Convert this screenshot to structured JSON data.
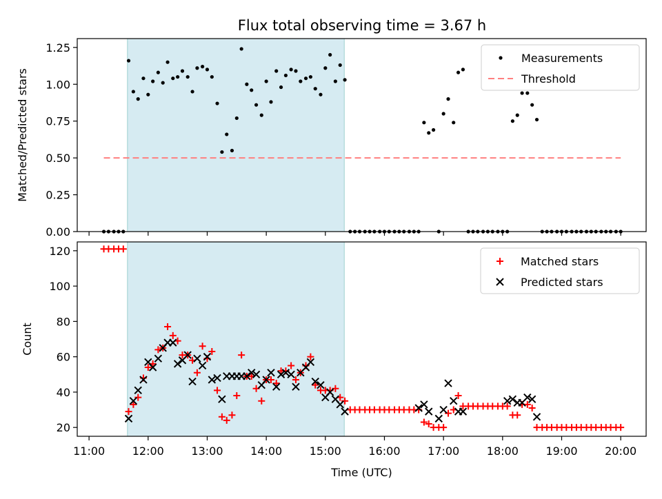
{
  "chart_data": [
    {
      "type": "scatter",
      "title": "Flux total observing time = 3.67 h",
      "ylabel": "Matched/Predicted stars",
      "xlabel": "",
      "xlim": [
        10.8,
        20.43
      ],
      "ylim": [
        0,
        1.31
      ],
      "xticks": [
        11,
        12,
        13,
        14,
        15,
        16,
        17,
        18,
        19,
        20
      ],
      "yticks": [
        0,
        0.25,
        0.5,
        0.75,
        1.0,
        1.25
      ],
      "ytick_labels": [
        "0.00",
        "0.25",
        "0.50",
        "0.75",
        "1.00",
        "1.25"
      ],
      "shaded_interval": [
        11.65,
        15.32
      ],
      "legend_position": "upper-right",
      "series": [
        {
          "name": "Measurements",
          "marker": "dot",
          "color": "#000000",
          "x": [
            11.25,
            11.33,
            11.42,
            11.5,
            11.58,
            11.67,
            11.75,
            11.83,
            11.92,
            12.0,
            12.08,
            12.17,
            12.25,
            12.33,
            12.42,
            12.5,
            12.58,
            12.67,
            12.75,
            12.83,
            12.92,
            13.0,
            13.08,
            13.17,
            13.25,
            13.33,
            13.42,
            13.5,
            13.58,
            13.67,
            13.75,
            13.83,
            13.92,
            14.0,
            14.08,
            14.17,
            14.25,
            14.33,
            14.42,
            14.5,
            14.58,
            14.67,
            14.75,
            14.83,
            14.92,
            15.0,
            15.08,
            15.17,
            15.25,
            15.33,
            15.42,
            15.5,
            15.58,
            15.67,
            15.75,
            15.83,
            15.92,
            16.0,
            16.08,
            16.17,
            16.25,
            16.33,
            16.42,
            16.5,
            16.58,
            16.67,
            16.75,
            16.83,
            16.92,
            17.0,
            17.08,
            17.17,
            17.25,
            17.33,
            17.42,
            17.5,
            17.58,
            17.67,
            17.75,
            17.83,
            17.92,
            18.0,
            18.08,
            18.17,
            18.25,
            18.33,
            18.42,
            18.5,
            18.58,
            18.67,
            18.75,
            18.83,
            18.92,
            19.0,
            19.08,
            19.17,
            19.25,
            19.33,
            19.42,
            19.5,
            19.58,
            19.67,
            19.75,
            19.83,
            19.92,
            20.0
          ],
          "y": [
            0,
            0,
            0,
            0,
            0,
            1.16,
            0.95,
            0.9,
            1.04,
            0.93,
            1.02,
            1.08,
            1.01,
            1.15,
            1.04,
            1.05,
            1.09,
            1.05,
            0.95,
            1.11,
            1.12,
            1.1,
            1.05,
            0.87,
            0.54,
            0.66,
            0.55,
            0.77,
            1.24,
            1.0,
            0.96,
            0.86,
            0.79,
            1.02,
            0.88,
            1.09,
            0.98,
            1.06,
            1.1,
            1.09,
            1.02,
            1.04,
            1.05,
            0.97,
            0.93,
            1.11,
            1.2,
            1.02,
            1.13,
            1.03,
            0,
            0,
            0,
            0,
            0,
            0,
            0,
            0,
            0,
            0,
            0,
            0,
            0,
            0,
            0,
            0.74,
            0.67,
            0.69,
            0,
            0.8,
            0.9,
            0.74,
            1.08,
            1.1,
            0,
            0,
            0,
            0,
            0,
            0,
            0,
            0,
            0,
            0.75,
            0.79,
            0.94,
            0.94,
            0.86,
            0.76,
            0,
            0,
            0,
            0,
            0,
            0,
            0,
            0,
            0,
            0,
            0,
            0,
            0,
            0,
            0,
            0,
            0
          ]
        },
        {
          "name": "Threshold",
          "style": "dashed",
          "color": "#ff7f7f",
          "x": [
            11.25,
            20.0
          ],
          "y": [
            0.5,
            0.5
          ]
        }
      ]
    },
    {
      "type": "scatter",
      "title": "",
      "ylabel": "Count",
      "xlabel": "Time (UTC)",
      "xlim": [
        10.8,
        20.43
      ],
      "ylim": [
        15,
        125
      ],
      "xticks": [
        11,
        12,
        13,
        14,
        15,
        16,
        17,
        18,
        19,
        20
      ],
      "xtick_labels": [
        "11:00",
        "12:00",
        "13:00",
        "14:00",
        "15:00",
        "16:00",
        "17:00",
        "18:00",
        "19:00",
        "20:00"
      ],
      "yticks": [
        20,
        40,
        60,
        80,
        100,
        120
      ],
      "ytick_labels": [
        "20",
        "40",
        "60",
        "80",
        "100",
        "120"
      ],
      "shaded_interval": [
        11.65,
        15.32
      ],
      "legend_position": "upper-right",
      "series": [
        {
          "name": "Matched stars",
          "marker": "plus",
          "color": "#ff0000",
          "x": [
            11.25,
            11.33,
            11.42,
            11.5,
            11.58,
            11.67,
            11.75,
            11.83,
            11.92,
            12.0,
            12.08,
            12.17,
            12.25,
            12.33,
            12.42,
            12.5,
            12.58,
            12.67,
            12.75,
            12.83,
            12.92,
            13.0,
            13.08,
            13.17,
            13.25,
            13.33,
            13.42,
            13.5,
            13.58,
            13.67,
            13.75,
            13.83,
            13.92,
            14.0,
            14.08,
            14.17,
            14.25,
            14.33,
            14.42,
            14.5,
            14.58,
            14.67,
            14.75,
            14.83,
            14.92,
            15.0,
            15.08,
            15.17,
            15.25,
            15.33,
            15.42,
            15.5,
            15.58,
            15.67,
            15.75,
            15.83,
            15.92,
            16.0,
            16.08,
            16.17,
            16.25,
            16.33,
            16.42,
            16.5,
            16.58,
            16.67,
            16.75,
            16.83,
            16.92,
            17.0,
            17.08,
            17.17,
            17.25,
            17.33,
            17.42,
            17.5,
            17.58,
            17.67,
            17.75,
            17.83,
            17.92,
            18.0,
            18.08,
            18.17,
            18.25,
            18.33,
            18.42,
            18.5,
            18.58,
            18.67,
            18.75,
            18.83,
            18.92,
            19.0,
            19.08,
            19.17,
            19.25,
            19.33,
            19.42,
            19.5,
            19.58,
            19.67,
            19.75,
            19.83,
            19.92,
            20.0
          ],
          "y": [
            121,
            121,
            121,
            121,
            121,
            29,
            33,
            37,
            48,
            54,
            56,
            64,
            65,
            77,
            72,
            69,
            61,
            61,
            58,
            51,
            66,
            59,
            63,
            41,
            26,
            24,
            27,
            38,
            61,
            49,
            49,
            42,
            35,
            47,
            47,
            45,
            52,
            52,
            55,
            47,
            51,
            55,
            60,
            44,
            41,
            41,
            41,
            42,
            37,
            35,
            30,
            30,
            30,
            30,
            30,
            30,
            30,
            30,
            30,
            30,
            30,
            30,
            30,
            30,
            30,
            23,
            22,
            20,
            20,
            20,
            28,
            30,
            38,
            32,
            32,
            32,
            32,
            32,
            32,
            32,
            32,
            32,
            32,
            27,
            27,
            33,
            33,
            31,
            20,
            20,
            20,
            20,
            20,
            20,
            20,
            20,
            20,
            20,
            20,
            20,
            20,
            20,
            20,
            20,
            20,
            20
          ]
        },
        {
          "name": "Predicted stars",
          "marker": "x",
          "color": "#000000",
          "x": [
            11.67,
            11.75,
            11.83,
            11.92,
            12.0,
            12.08,
            12.17,
            12.25,
            12.33,
            12.42,
            12.5,
            12.58,
            12.67,
            12.75,
            12.83,
            12.92,
            13.0,
            13.08,
            13.17,
            13.25,
            13.33,
            13.42,
            13.5,
            13.58,
            13.67,
            13.75,
            13.83,
            13.92,
            14.0,
            14.08,
            14.17,
            14.25,
            14.33,
            14.42,
            14.5,
            14.58,
            14.67,
            14.75,
            14.83,
            14.92,
            15.0,
            15.08,
            15.17,
            15.25,
            15.33,
            16.58,
            16.67,
            16.75,
            16.92,
            17.0,
            17.08,
            17.17,
            17.25,
            17.33,
            18.08,
            18.17,
            18.25,
            18.33,
            18.42,
            18.5,
            18.58
          ],
          "y": [
            25,
            35,
            41,
            47,
            57,
            54,
            59,
            65,
            68,
            68,
            56,
            58,
            61,
            46,
            59,
            55,
            60,
            47,
            48,
            36,
            49,
            49,
            49,
            49,
            49,
            51,
            50,
            44,
            47,
            51,
            43,
            50,
            51,
            50,
            43,
            51,
            54,
            57,
            46,
            44,
            37,
            40,
            36,
            33,
            29,
            31,
            33,
            29,
            25,
            30,
            45,
            35,
            29,
            29,
            35,
            36,
            34,
            34,
            37,
            36,
            26
          ]
        }
      ]
    }
  ]
}
